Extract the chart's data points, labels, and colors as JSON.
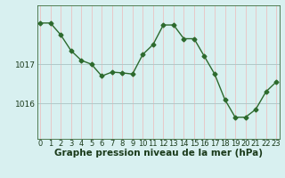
{
  "x": [
    0,
    1,
    2,
    3,
    4,
    5,
    6,
    7,
    8,
    9,
    10,
    11,
    12,
    13,
    14,
    15,
    16,
    17,
    18,
    19,
    20,
    21,
    22,
    23
  ],
  "y": [
    1018.05,
    1018.05,
    1017.75,
    1017.35,
    1017.1,
    1017.0,
    1016.7,
    1016.8,
    1016.78,
    1016.75,
    1017.25,
    1017.5,
    1018.0,
    1018.0,
    1017.65,
    1017.65,
    1017.2,
    1016.75,
    1016.1,
    1015.65,
    1015.65,
    1015.85,
    1016.3,
    1016.55
  ],
  "line_color": "#2d6a2d",
  "marker": "D",
  "markersize": 2.5,
  "linewidth": 1.0,
  "bg_color": "#d8f0f0",
  "vgrid_color": "#e8c8c8",
  "hgrid_color": "#b0c8c8",
  "ylabel_ticks": [
    1016,
    1017
  ],
  "xlim": [
    -0.3,
    23.3
  ],
  "ylim": [
    1015.1,
    1018.5
  ],
  "xlabel": "Graphe pression niveau de la mer (hPa)",
  "xlabel_fontsize": 7.5,
  "tick_fontsize": 6.0,
  "ytick_fontsize": 6.5
}
